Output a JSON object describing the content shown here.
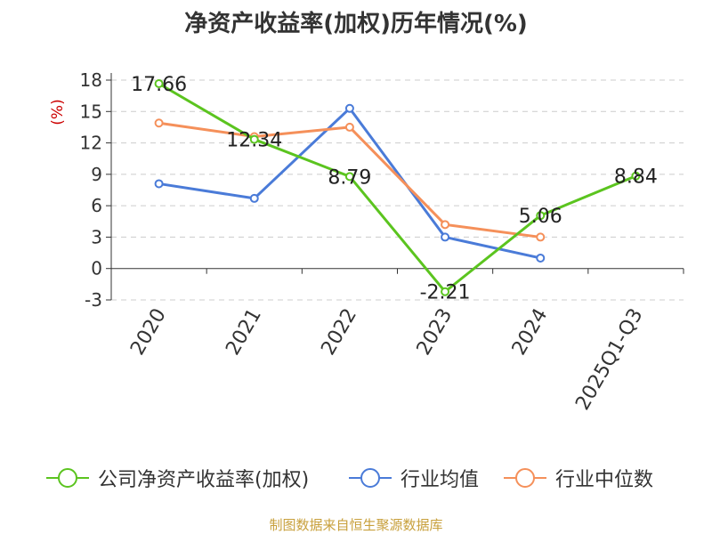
{
  "title": "净资产收益率(加权)历年情况(%)",
  "source": "制图数据来自恒生聚源数据库",
  "chart_data": {
    "type": "line",
    "title": "净资产收益率(加权)历年情况(%)",
    "ylabel": "(%)",
    "xlabel": "",
    "categories": [
      "2020",
      "2021",
      "2022",
      "2023",
      "2024",
      "2025Q1-Q3"
    ],
    "ylim": [
      -3,
      18
    ],
    "yticks": [
      -3,
      0,
      3,
      6,
      9,
      12,
      15,
      18
    ],
    "grid": "horizontal-dashed",
    "legend_position": "bottom",
    "series": [
      {
        "name": "公司净资产收益率(加权)",
        "color": "#5bc41f",
        "values": [
          17.66,
          12.34,
          8.79,
          -2.21,
          5.06,
          8.84
        ],
        "data_labels": [
          "17.66",
          "12.34",
          "8.79",
          "-2.21",
          "5.06",
          "8.84"
        ]
      },
      {
        "name": "行业均值",
        "color": "#4a7bd8",
        "values": [
          8.1,
          6.7,
          15.3,
          3.0,
          1.0,
          null
        ]
      },
      {
        "name": "行业中位数",
        "color": "#f5905a",
        "values": [
          13.9,
          12.6,
          13.5,
          4.2,
          3.0,
          null
        ]
      }
    ]
  }
}
